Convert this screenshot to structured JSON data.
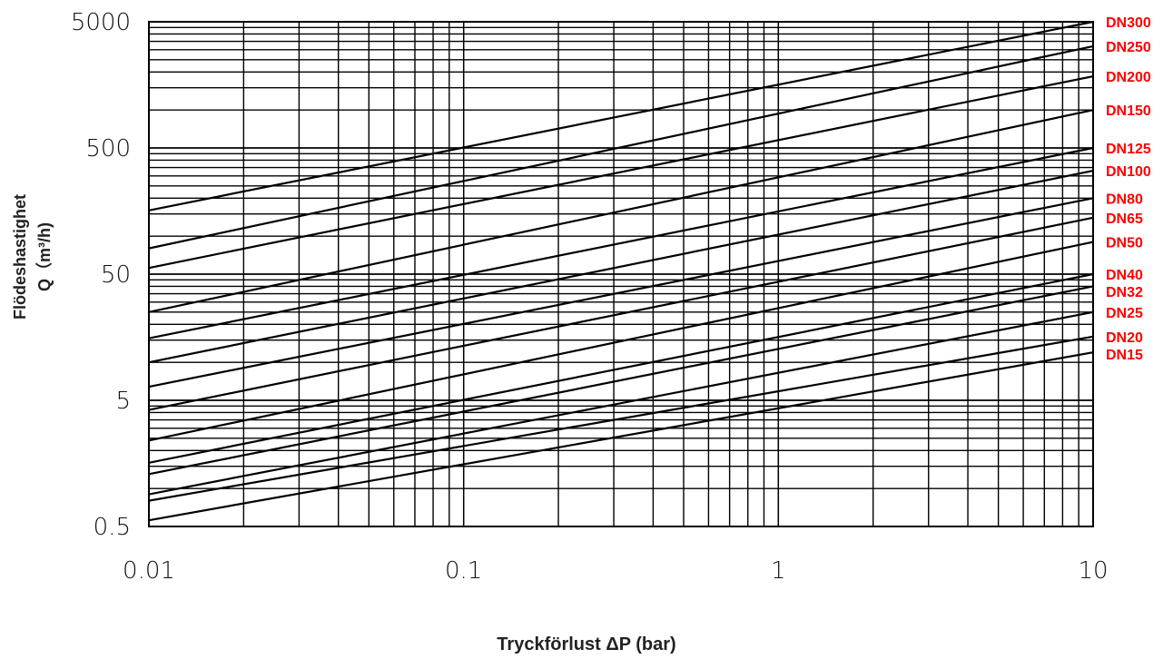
{
  "chart_data": {
    "type": "line",
    "x_scale": "log",
    "y_scale": "log",
    "xlim": [
      0.01,
      10
    ],
    "ylim": [
      0.5,
      5000
    ],
    "grid": true,
    "xlabel": "Tryckförlust ΔP (bar)",
    "ylabel_line1": "Flödeshastighet",
    "ylabel_line2": "Q（m³/h)",
    "x_ticks": [
      {
        "value": 0.01,
        "label": "0.01"
      },
      {
        "value": 0.1,
        "label": "0.1"
      },
      {
        "value": 1,
        "label": "1"
      },
      {
        "value": 10,
        "label": "10"
      }
    ],
    "y_ticks": [
      {
        "value": 0.5,
        "label": "0.5"
      },
      {
        "value": 5,
        "label": "5"
      },
      {
        "value": 50,
        "label": "50"
      },
      {
        "value": 500,
        "label": "500"
      },
      {
        "value": 5000,
        "label": "5000"
      }
    ],
    "series_label_color": "#ff0000",
    "line_color": "#000000",
    "series": [
      {
        "name": "DN300",
        "x": [
          0.01,
          10
        ],
        "y": [
          160,
          5000
        ]
      },
      {
        "name": "DN250",
        "x": [
          0.01,
          10
        ],
        "y": [
          80,
          3200
        ]
      },
      {
        "name": "DN200",
        "x": [
          0.01,
          10
        ],
        "y": [
          56,
          1850
        ]
      },
      {
        "name": "DN150",
        "x": [
          0.01,
          10
        ],
        "y": [
          25,
          1000
        ]
      },
      {
        "name": "DN125",
        "x": [
          0.01,
          10
        ],
        "y": [
          15.5,
          500
        ]
      },
      {
        "name": "DN100",
        "x": [
          0.01,
          10
        ],
        "y": [
          10,
          330
        ]
      },
      {
        "name": "DN80",
        "x": [
          0.01,
          10
        ],
        "y": [
          6.4,
          200
        ]
      },
      {
        "name": "DN65",
        "x": [
          0.01,
          10
        ],
        "y": [
          4.2,
          140
        ]
      },
      {
        "name": "DN50",
        "x": [
          0.01,
          10
        ],
        "y": [
          2.4,
          90
        ]
      },
      {
        "name": "DN40",
        "x": [
          0.01,
          10
        ],
        "y": [
          1.6,
          50
        ]
      },
      {
        "name": "DN32",
        "x": [
          0.01,
          10
        ],
        "y": [
          1.3,
          40
        ]
      },
      {
        "name": "DN25",
        "x": [
          0.01,
          10
        ],
        "y": [
          0.9,
          25
        ]
      },
      {
        "name": "DN20",
        "x": [
          0.01,
          10
        ],
        "y": [
          0.8,
          16
        ]
      },
      {
        "name": "DN15",
        "x": [
          0.01,
          10
        ],
        "y": [
          0.56,
          12
        ]
      }
    ],
    "label_order": [
      "DN300",
      "DN250",
      "DN200",
      "DN150",
      "DN125",
      "DN100",
      "DN80",
      "DN65",
      "DN50",
      "DN40",
      "DN32",
      "DN25",
      "DN20",
      "DN15"
    ]
  }
}
